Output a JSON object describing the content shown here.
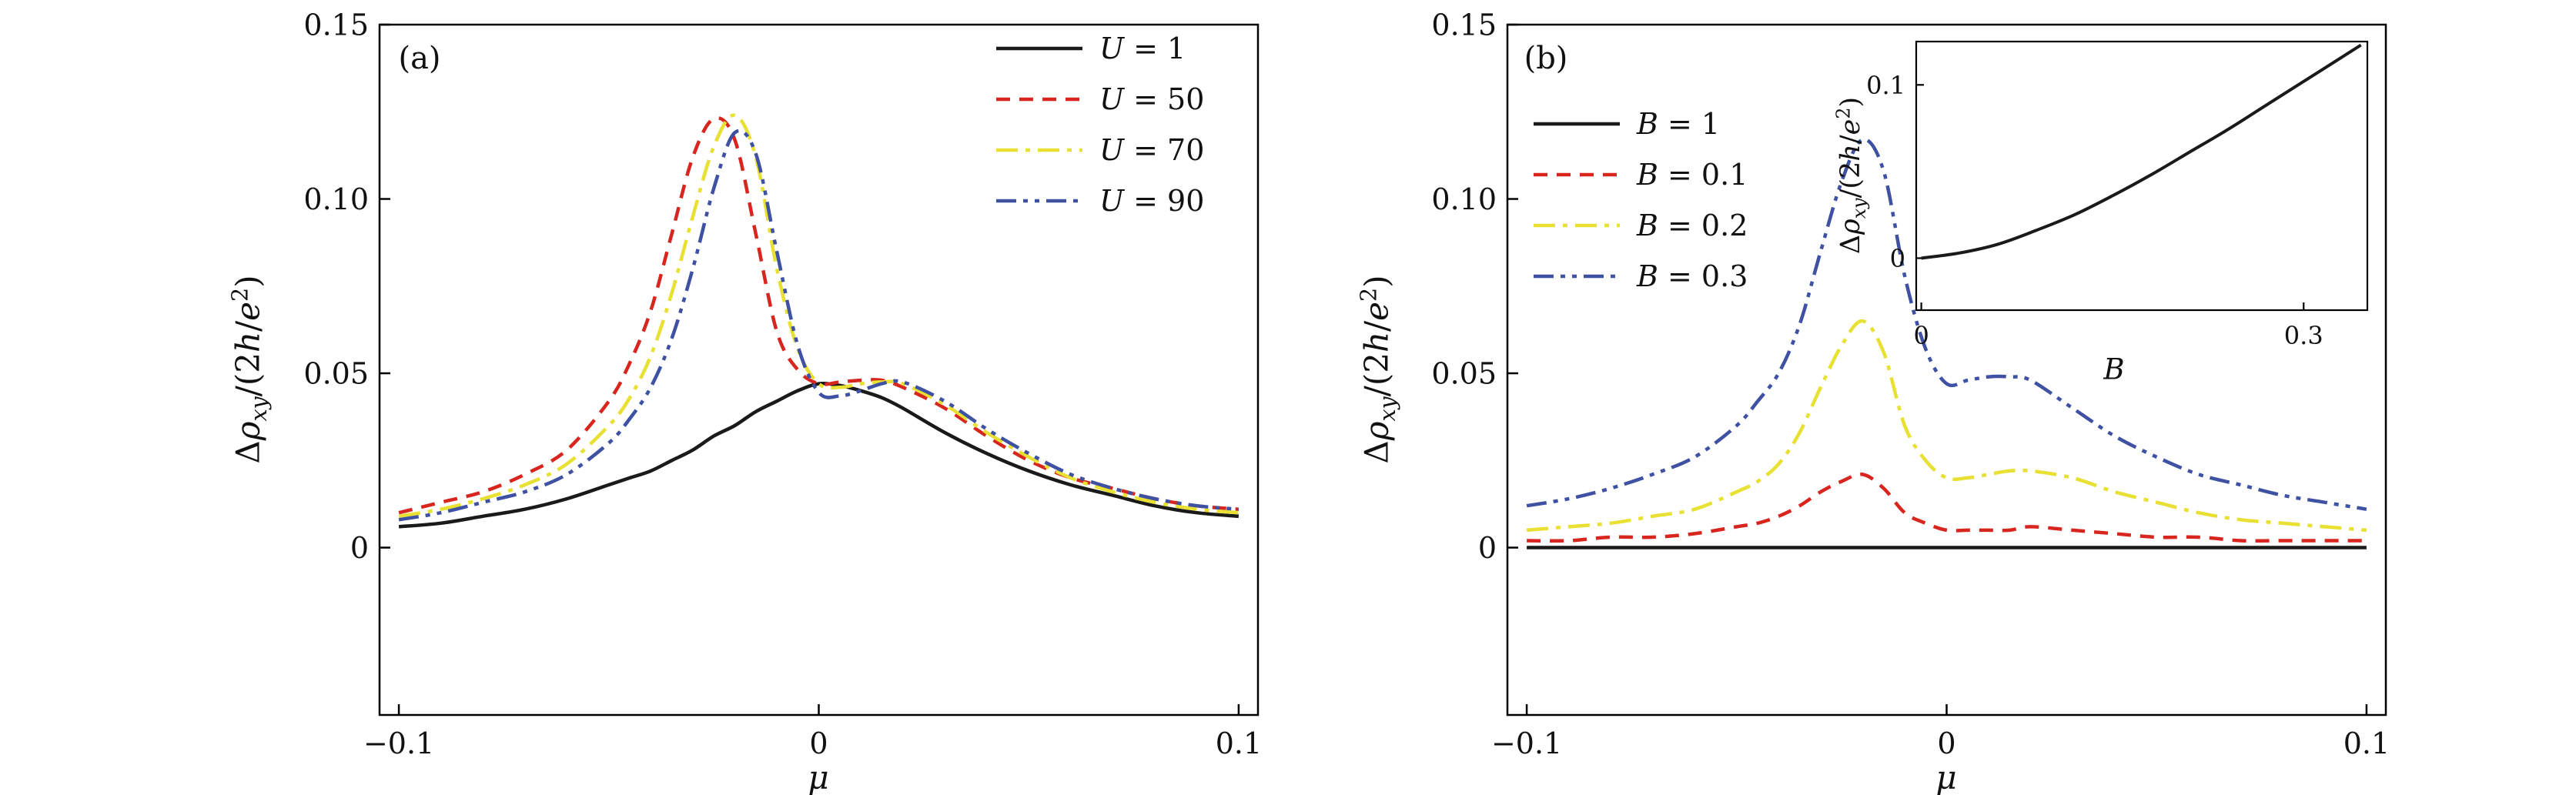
{
  "figure": {
    "background": "#ffffff",
    "frame_color": "#000000"
  },
  "colors": {
    "black": "#1a1a1a",
    "red": "#d8261e",
    "yellow": "#e8e032",
    "blue": "#3f51a3"
  },
  "chart_data": [
    {
      "id": "panel_a",
      "type": "line",
      "panel_label": "(a)",
      "xlabel_html": "<i>μ</i>",
      "ylabel_html": "Δ<i>ρ</i><sub><i>xy</i></sub>/(2<i>h</i>/<i>e</i><sup>2</sup>)",
      "xlim": [
        -0.1046,
        0.1046
      ],
      "ylim": [
        -0.048,
        0.15
      ],
      "xticks": [
        {
          "v": -0.1,
          "label": "−0.1"
        },
        {
          "v": 0,
          "label": "0"
        },
        {
          "v": 0.1,
          "label": "0.1"
        }
      ],
      "yticks": [
        {
          "v": 0,
          "label": "0"
        },
        {
          "v": 0.05,
          "label": "0.05"
        },
        {
          "v": 0.1,
          "label": "0.10"
        },
        {
          "v": 0.15,
          "label": "0.15"
        }
      ],
      "legend_position": "top-right",
      "grid": false,
      "series": [
        {
          "label_html": "<i>U</i> = 1",
          "color": "#1a1a1a",
          "linestyle": "solid",
          "x": [
            -0.1,
            -0.09,
            -0.08,
            -0.07,
            -0.06,
            -0.05,
            -0.045,
            -0.04,
            -0.035,
            -0.03,
            -0.025,
            -0.02,
            -0.015,
            -0.01,
            -0.005,
            0,
            0.005,
            0.01,
            0.015,
            0.02,
            0.03,
            0.04,
            0.05,
            0.06,
            0.07,
            0.08,
            0.09,
            0.1
          ],
          "y": [
            0.006,
            0.007,
            0.009,
            0.011,
            0.014,
            0.018,
            0.02,
            0.022,
            0.025,
            0.028,
            0.032,
            0.035,
            0.039,
            0.042,
            0.045,
            0.047,
            0.0465,
            0.045,
            0.043,
            0.04,
            0.033,
            0.027,
            0.022,
            0.018,
            0.015,
            0.012,
            0.01,
            0.009
          ]
        },
        {
          "label_html": "<i>U</i> = 50",
          "color": "#d8261e",
          "linestyle": "dashed",
          "x": [
            -0.1,
            -0.09,
            -0.08,
            -0.07,
            -0.06,
            -0.05,
            -0.045,
            -0.04,
            -0.035,
            -0.03,
            -0.025,
            -0.02,
            -0.015,
            -0.01,
            -0.005,
            0,
            0.005,
            0.01,
            0.015,
            0.02,
            0.03,
            0.04,
            0.05,
            0.06,
            0.07,
            0.08,
            0.09,
            0.1
          ],
          "y": [
            0.01,
            0.013,
            0.016,
            0.021,
            0.028,
            0.042,
            0.053,
            0.068,
            0.09,
            0.112,
            0.123,
            0.117,
            0.09,
            0.062,
            0.051,
            0.047,
            0.0475,
            0.048,
            0.048,
            0.046,
            0.04,
            0.032,
            0.025,
            0.02,
            0.017,
            0.014,
            0.012,
            0.011
          ]
        },
        {
          "label_html": "<i>U</i> = 70",
          "color": "#e8e032",
          "linestyle": "dashdot",
          "x": [
            -0.1,
            -0.09,
            -0.08,
            -0.07,
            -0.06,
            -0.05,
            -0.045,
            -0.04,
            -0.035,
            -0.03,
            -0.025,
            -0.02,
            -0.015,
            -0.01,
            -0.005,
            0,
            0.005,
            0.01,
            0.015,
            0.02,
            0.03,
            0.04,
            0.05,
            0.06,
            0.07,
            0.08,
            0.09,
            0.1
          ],
          "y": [
            0.009,
            0.011,
            0.014,
            0.018,
            0.024,
            0.035,
            0.043,
            0.055,
            0.073,
            0.095,
            0.115,
            0.124,
            0.112,
            0.08,
            0.057,
            0.047,
            0.046,
            0.047,
            0.0475,
            0.047,
            0.041,
            0.033,
            0.026,
            0.02,
            0.016,
            0.013,
            0.011,
            0.01
          ]
        },
        {
          "label_html": "<i>U</i> = 90",
          "color": "#3f51a3",
          "linestyle": "dashdotdot",
          "x": [
            -0.1,
            -0.09,
            -0.08,
            -0.07,
            -0.06,
            -0.05,
            -0.045,
            -0.04,
            -0.035,
            -0.03,
            -0.025,
            -0.02,
            -0.015,
            -0.01,
            -0.005,
            0,
            0.005,
            0.01,
            0.015,
            0.02,
            0.03,
            0.04,
            0.05,
            0.06,
            0.07,
            0.08,
            0.09,
            0.1
          ],
          "y": [
            0.008,
            0.01,
            0.013,
            0.016,
            0.021,
            0.03,
            0.037,
            0.046,
            0.06,
            0.08,
            0.103,
            0.119,
            0.113,
            0.085,
            0.058,
            0.0445,
            0.0435,
            0.045,
            0.047,
            0.0475,
            0.042,
            0.034,
            0.027,
            0.021,
            0.017,
            0.014,
            0.012,
            0.011
          ]
        }
      ]
    },
    {
      "id": "panel_b",
      "type": "line",
      "panel_label": "(b)",
      "xlabel_html": "<i>μ</i>",
      "ylabel_html": "Δ<i>ρ</i><sub><i>xy</i></sub>/(2<i>h</i>/<i>e</i><sup>2</sup>)",
      "xlim": [
        -0.1046,
        0.1046
      ],
      "ylim": [
        -0.048,
        0.15
      ],
      "xticks": [
        {
          "v": -0.1,
          "label": "−0.1"
        },
        {
          "v": 0,
          "label": "0"
        },
        {
          "v": 0.1,
          "label": "0.1"
        }
      ],
      "yticks": [
        {
          "v": 0,
          "label": "0"
        },
        {
          "v": 0.05,
          "label": "0.05"
        },
        {
          "v": 0.1,
          "label": "0.10"
        },
        {
          "v": 0.15,
          "label": "0.15"
        }
      ],
      "legend_position": "top-left",
      "grid": false,
      "series": [
        {
          "label_html": "<i>B</i> = 1",
          "color": "#1a1a1a",
          "linestyle": "solid",
          "x": [
            -0.1,
            -0.05,
            0,
            0.05,
            0.1
          ],
          "y": [
            0,
            0,
            0,
            0,
            0
          ]
        },
        {
          "label_html": "<i>B</i> = 0.1",
          "color": "#d8261e",
          "linestyle": "dashed",
          "x": [
            -0.1,
            -0.09,
            -0.08,
            -0.07,
            -0.06,
            -0.05,
            -0.045,
            -0.04,
            -0.035,
            -0.03,
            -0.025,
            -0.02,
            -0.015,
            -0.01,
            -0.005,
            0,
            0.005,
            0.01,
            0.015,
            0.02,
            0.03,
            0.04,
            0.05,
            0.06,
            0.07,
            0.08,
            0.09,
            0.1
          ],
          "y": [
            0.002,
            0.002,
            0.003,
            0.003,
            0.004,
            0.006,
            0.007,
            0.009,
            0.012,
            0.016,
            0.019,
            0.021,
            0.017,
            0.01,
            0.007,
            0.005,
            0.005,
            0.005,
            0.005,
            0.006,
            0.005,
            0.004,
            0.003,
            0.003,
            0.002,
            0.002,
            0.002,
            0.002
          ]
        },
        {
          "label_html": "<i>B</i> = 0.2",
          "color": "#e8e032",
          "linestyle": "dashdot",
          "x": [
            -0.1,
            -0.09,
            -0.08,
            -0.07,
            -0.06,
            -0.05,
            -0.045,
            -0.04,
            -0.035,
            -0.03,
            -0.025,
            -0.02,
            -0.015,
            -0.01,
            -0.005,
            0,
            0.005,
            0.01,
            0.015,
            0.02,
            0.03,
            0.04,
            0.05,
            0.06,
            0.07,
            0.08,
            0.09,
            0.1
          ],
          "y": [
            0.005,
            0.006,
            0.007,
            0.009,
            0.011,
            0.016,
            0.019,
            0.024,
            0.033,
            0.046,
            0.058,
            0.065,
            0.056,
            0.035,
            0.025,
            0.02,
            0.02,
            0.021,
            0.022,
            0.022,
            0.02,
            0.016,
            0.013,
            0.01,
            0.008,
            0.007,
            0.006,
            0.005
          ]
        },
        {
          "label_html": "<i>B</i> = 0.3",
          "color": "#3f51a3",
          "linestyle": "dashdotdot",
          "x": [
            -0.1,
            -0.09,
            -0.08,
            -0.07,
            -0.06,
            -0.05,
            -0.045,
            -0.04,
            -0.035,
            -0.03,
            -0.025,
            -0.02,
            -0.015,
            -0.01,
            -0.005,
            0,
            0.005,
            0.01,
            0.015,
            0.02,
            0.03,
            0.04,
            0.05,
            0.06,
            0.07,
            0.08,
            0.09,
            0.1
          ],
          "y": [
            0.012,
            0.014,
            0.017,
            0.021,
            0.026,
            0.035,
            0.042,
            0.05,
            0.064,
            0.085,
            0.105,
            0.117,
            0.108,
            0.078,
            0.057,
            0.047,
            0.048,
            0.049,
            0.049,
            0.048,
            0.04,
            0.032,
            0.026,
            0.021,
            0.018,
            0.015,
            0.013,
            0.011
          ]
        }
      ]
    },
    {
      "id": "inset",
      "type": "line",
      "panel_label": "",
      "xlabel_html": "<i>B</i>",
      "ylabel_html": "Δ<i>ρ</i><sub><i>xy</i></sub>/(2<i>h</i>/<i>e</i><sup>2</sup>)",
      "xlim": [
        -0.004,
        0.35
      ],
      "ylim": [
        -0.03,
        0.125
      ],
      "xticks": [
        {
          "v": 0,
          "label": "0"
        },
        {
          "v": 0.3,
          "label": "0.3"
        }
      ],
      "yticks": [
        {
          "v": 0,
          "label": "0"
        },
        {
          "v": 0.1,
          "label": "0.1"
        }
      ],
      "legend_position": "none",
      "grid": false,
      "series": [
        {
          "label_html": "",
          "color": "#1a1a1a",
          "linestyle": "solid",
          "x": [
            0,
            0.03,
            0.06,
            0.09,
            0.12,
            0.15,
            0.18,
            0.21,
            0.24,
            0.27,
            0.3,
            0.33,
            0.345
          ],
          "y": [
            0,
            0.003,
            0.008,
            0.016,
            0.025,
            0.036,
            0.048,
            0.061,
            0.074,
            0.088,
            0.102,
            0.116,
            0.123
          ]
        }
      ]
    }
  ]
}
